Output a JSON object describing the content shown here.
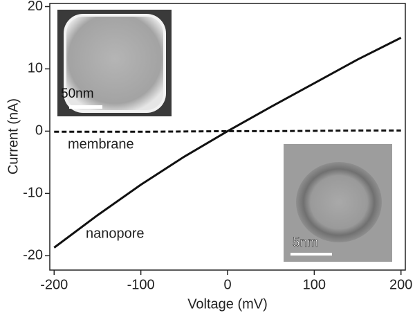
{
  "chart_data": {
    "type": "line",
    "x_label": "Voltage (mV)",
    "y_label": "Current (nA)",
    "x": [
      -200,
      -150,
      -100,
      -50,
      0,
      50,
      100,
      150,
      200
    ],
    "series": [
      {
        "name": "nanopore",
        "color": "#111111",
        "linestyle": "solid",
        "values": [
          -18.7,
          -13.5,
          -8.6,
          -4.1,
          0,
          3.9,
          7.7,
          11.5,
          15.0
        ]
      },
      {
        "name": "membrane",
        "color": "#111111",
        "linestyle": "dashed",
        "values": [
          -0.1,
          -0.1,
          -0.1,
          -0.05,
          0,
          0,
          0.05,
          0.1,
          0.1
        ]
      }
    ],
    "xlim": [
      -205,
      205
    ],
    "xticks": [
      -200,
      -100,
      0,
      100,
      200
    ],
    "ylim": [
      -22.3,
      20.5
    ],
    "yticks": [
      -20,
      -10,
      0,
      10,
      20
    ],
    "annotations": [
      "50nm",
      "5nm"
    ]
  }
}
